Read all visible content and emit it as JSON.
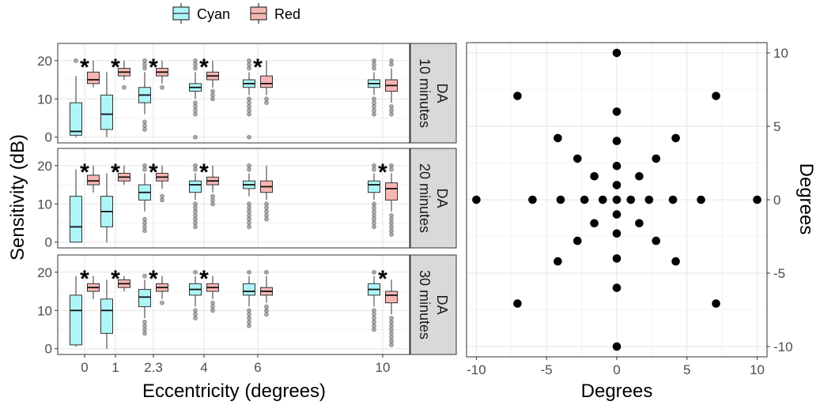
{
  "chart_data": [
    {
      "type": "box",
      "legend": {
        "placement": "top",
        "entries": [
          {
            "name": "Cyan",
            "fill": "#aef5f8"
          },
          {
            "name": "Red",
            "fill": "#f7b6b3"
          }
        ]
      },
      "xlabel": "Eccentricity (degrees)",
      "ylabel": "Sensitivity (dB)",
      "x_ticks": [
        0,
        1,
        2.3,
        4,
        6,
        10
      ],
      "x_tick_labels": [
        "0",
        "1",
        "2.3",
        "4",
        "6",
        "10"
      ],
      "y_ticks": [
        0,
        10,
        20
      ],
      "y_tick_labels": [
        "0",
        "10",
        "20"
      ],
      "ylim": [
        -1.5,
        24.5
      ],
      "grid": true,
      "significance_marker": "*",
      "panels": [
        {
          "strip_lines": [
            "DA",
            "10 minutes"
          ],
          "significant": [
            true,
            true,
            true,
            true,
            true,
            false
          ],
          "series": [
            {
              "name": "Cyan",
              "boxes": [
                {
                  "x": 0,
                  "q1": 0.5,
                  "median": 1.5,
                  "q3": 9,
                  "whislo": 0,
                  "whishi": 16,
                  "outliers": [
                    20
                  ]
                },
                {
                  "x": 1,
                  "q1": 2,
                  "median": 6,
                  "q3": 11,
                  "whislo": 0,
                  "whishi": 17,
                  "outliers": []
                },
                {
                  "x": 2.3,
                  "q1": 9,
                  "median": 11,
                  "q3": 13,
                  "whislo": 6,
                  "whishi": 17,
                  "outliers": [
                    4,
                    3,
                    2,
                    18,
                    19,
                    20
                  ]
                },
                {
                  "x": 4,
                  "q1": 12,
                  "median": 13,
                  "q3": 14,
                  "whislo": 10,
                  "whishi": 17,
                  "outliers": [
                    9,
                    8,
                    7,
                    6,
                    0,
                    18,
                    19,
                    20
                  ]
                },
                {
                  "x": 6,
                  "q1": 13,
                  "median": 14,
                  "q3": 15,
                  "whislo": 11,
                  "whishi": 17,
                  "outliers": [
                    10,
                    9,
                    8,
                    7,
                    6,
                    0,
                    18,
                    19,
                    20
                  ]
                },
                {
                  "x": 10,
                  "q1": 13,
                  "median": 14,
                  "q3": 15,
                  "whislo": 11,
                  "whishi": 17,
                  "outliers": [
                    10,
                    9,
                    8,
                    7,
                    6,
                    18,
                    19,
                    20
                  ]
                }
              ]
            },
            {
              "name": "Red",
              "boxes": [
                {
                  "x": 0,
                  "q1": 14,
                  "median": 15,
                  "q3": 17,
                  "whislo": 13,
                  "whishi": 20,
                  "outliers": []
                },
                {
                  "x": 1,
                  "q1": 16,
                  "median": 17,
                  "q3": 18,
                  "whislo": 15,
                  "whishi": 20,
                  "outliers": [
                    13
                  ]
                },
                {
                  "x": 2.3,
                  "q1": 16,
                  "median": 17,
                  "q3": 18,
                  "whislo": 14,
                  "whishi": 20,
                  "outliers": [
                    13
                  ]
                },
                {
                  "x": 4,
                  "q1": 15,
                  "median": 16,
                  "q3": 17,
                  "whislo": 13,
                  "whishi": 20,
                  "outliers": [
                    12,
                    11,
                    10
                  ]
                },
                {
                  "x": 6,
                  "q1": 13,
                  "median": 14,
                  "q3": 16,
                  "whislo": 11,
                  "whishi": 20,
                  "outliers": [
                    10,
                    9
                  ]
                },
                {
                  "x": 10,
                  "q1": 12,
                  "median": 13.5,
                  "q3": 15,
                  "whislo": 9,
                  "whishi": 18,
                  "outliers": [
                    8,
                    7,
                    6,
                    19,
                    20
                  ]
                }
              ]
            }
          ]
        },
        {
          "strip_lines": [
            "DA",
            "20 minutes"
          ],
          "significant": [
            true,
            true,
            true,
            true,
            false,
            true
          ],
          "series": [
            {
              "name": "Cyan",
              "boxes": [
                {
                  "x": 0,
                  "q1": 0,
                  "median": 4,
                  "q3": 12,
                  "whislo": 0,
                  "whishi": 19,
                  "outliers": []
                },
                {
                  "x": 1,
                  "q1": 4,
                  "median": 8,
                  "q3": 12,
                  "whislo": 0,
                  "whishi": 18,
                  "outliers": []
                },
                {
                  "x": 2.3,
                  "q1": 11,
                  "median": 13,
                  "q3": 15,
                  "whislo": 8,
                  "whishi": 18,
                  "outliers": [
                    6,
                    5,
                    4,
                    3,
                    19,
                    20
                  ]
                },
                {
                  "x": 4,
                  "q1": 13,
                  "median": 15,
                  "q3": 16,
                  "whislo": 11,
                  "whishi": 18,
                  "outliers": [
                    10,
                    9,
                    8,
                    7,
                    6,
                    5,
                    4,
                    19,
                    20
                  ]
                },
                {
                  "x": 6,
                  "q1": 14,
                  "median": 15,
                  "q3": 16,
                  "whislo": 12,
                  "whishi": 18,
                  "outliers": [
                    10,
                    9,
                    8,
                    7,
                    6,
                    5,
                    4,
                    19,
                    20
                  ]
                },
                {
                  "x": 10,
                  "q1": 13,
                  "median": 15,
                  "q3": 16,
                  "whislo": 11,
                  "whishi": 18,
                  "outliers": [
                    10,
                    9,
                    8,
                    7,
                    6,
                    5,
                    4,
                    19,
                    20
                  ]
                }
              ]
            },
            {
              "name": "Red",
              "boxes": [
                {
                  "x": 0,
                  "q1": 15,
                  "median": 16,
                  "q3": 17.5,
                  "whislo": 13,
                  "whishi": 20,
                  "outliers": []
                },
                {
                  "x": 1,
                  "q1": 16,
                  "median": 17,
                  "q3": 18,
                  "whislo": 15,
                  "whishi": 20,
                  "outliers": []
                },
                {
                  "x": 2.3,
                  "q1": 16,
                  "median": 17,
                  "q3": 18,
                  "whislo": 14,
                  "whishi": 20,
                  "outliers": [
                    12,
                    11
                  ]
                },
                {
                  "x": 4,
                  "q1": 15,
                  "median": 16,
                  "q3": 17,
                  "whislo": 13,
                  "whishi": 20,
                  "outliers": [
                    12,
                    11,
                    10
                  ]
                },
                {
                  "x": 6,
                  "q1": 13,
                  "median": 14.5,
                  "q3": 16,
                  "whislo": 11,
                  "whishi": 20,
                  "outliers": [
                    10,
                    9,
                    8,
                    7,
                    6
                  ]
                },
                {
                  "x": 10,
                  "q1": 11,
                  "median": 14,
                  "q3": 15.5,
                  "whislo": 8,
                  "whishi": 18,
                  "outliers": [
                    7,
                    6,
                    5,
                    4,
                    3,
                    2,
                    19,
                    20
                  ]
                }
              ]
            }
          ]
        },
        {
          "strip_lines": [
            "DA",
            "30 minutes"
          ],
          "significant": [
            true,
            true,
            true,
            true,
            false,
            true
          ],
          "series": [
            {
              "name": "Cyan",
              "boxes": [
                {
                  "x": 0,
                  "q1": 1,
                  "median": 10,
                  "q3": 14,
                  "whislo": 0.5,
                  "whishi": 19,
                  "outliers": []
                },
                {
                  "x": 1,
                  "q1": 4,
                  "median": 10,
                  "q3": 13,
                  "whislo": 0,
                  "whishi": 18,
                  "outliers": []
                },
                {
                  "x": 2.3,
                  "q1": 11,
                  "median": 13.5,
                  "q3": 15.5,
                  "whislo": 8,
                  "whishi": 18,
                  "outliers": [
                    7,
                    6,
                    5,
                    4,
                    19
                  ]
                },
                {
                  "x": 4,
                  "q1": 14,
                  "median": 15.5,
                  "q3": 17,
                  "whislo": 11,
                  "whishi": 19,
                  "outliers": [
                    10,
                    9,
                    8,
                    20
                  ]
                },
                {
                  "x": 6,
                  "q1": 14,
                  "median": 15,
                  "q3": 17,
                  "whislo": 11,
                  "whishi": 19,
                  "outliers": [
                    10,
                    9,
                    8,
                    7,
                    6,
                    20
                  ]
                },
                {
                  "x": 10,
                  "q1": 14,
                  "median": 15.5,
                  "q3": 17,
                  "whislo": 11,
                  "whishi": 19,
                  "outliers": [
                    10,
                    9,
                    8,
                    7,
                    6,
                    5,
                    20
                  ]
                }
              ]
            },
            {
              "name": "Red",
              "boxes": [
                {
                  "x": 0,
                  "q1": 15,
                  "median": 16,
                  "q3": 17,
                  "whislo": 13,
                  "whishi": 19,
                  "outliers": []
                },
                {
                  "x": 1,
                  "q1": 16,
                  "median": 17,
                  "q3": 18,
                  "whislo": 15,
                  "whishi": 19,
                  "outliers": []
                },
                {
                  "x": 2.3,
                  "q1": 15,
                  "median": 16,
                  "q3": 17,
                  "whislo": 13,
                  "whishi": 19,
                  "outliers": [
                    12
                  ]
                },
                {
                  "x": 4,
                  "q1": 15,
                  "median": 16,
                  "q3": 17,
                  "whislo": 13,
                  "whishi": 19,
                  "outliers": [
                    12,
                    11,
                    10
                  ]
                },
                {
                  "x": 6,
                  "q1": 14,
                  "median": 15,
                  "q3": 16,
                  "whislo": 12,
                  "whishi": 19,
                  "outliers": [
                    11,
                    10,
                    9,
                    20
                  ]
                },
                {
                  "x": 10,
                  "q1": 12,
                  "median": 14,
                  "q3": 15,
                  "whislo": 9,
                  "whishi": 18,
                  "outliers": [
                    8,
                    7,
                    6,
                    5,
                    4,
                    3,
                    2,
                    1
                  ]
                }
              ]
            }
          ]
        }
      ]
    },
    {
      "type": "scatter",
      "xlabel": "Degrees",
      "ylabel": "Degrees",
      "xlim": [
        -10.7,
        10.7
      ],
      "ylim": [
        -10.7,
        10.7
      ],
      "x_ticks": [
        -10,
        -5,
        0,
        5,
        10
      ],
      "x_tick_labels": [
        "-10",
        "-5",
        "0",
        "5",
        "10"
      ],
      "y_ticks": [
        -10,
        -5,
        0,
        5,
        10
      ],
      "y_tick_labels": [
        "-10",
        "-5",
        "0",
        "5",
        "10"
      ],
      "y_axis_side": "right",
      "grid": true,
      "points": [
        [
          0,
          0
        ],
        [
          1,
          0
        ],
        [
          -1,
          0
        ],
        [
          0,
          1
        ],
        [
          0,
          -1
        ],
        [
          1.6,
          1.6
        ],
        [
          -1.6,
          1.6
        ],
        [
          1.6,
          -1.6
        ],
        [
          -1.6,
          -1.6
        ],
        [
          2.3,
          0
        ],
        [
          -2.3,
          0
        ],
        [
          0,
          2.3
        ],
        [
          0,
          -2.3
        ],
        [
          4,
          0
        ],
        [
          -4,
          0
        ],
        [
          0,
          4
        ],
        [
          0,
          -4
        ],
        [
          2.8,
          2.8
        ],
        [
          -2.8,
          2.8
        ],
        [
          2.8,
          -2.8
        ],
        [
          -2.8,
          -2.8
        ],
        [
          6,
          0
        ],
        [
          -6,
          0
        ],
        [
          0,
          6
        ],
        [
          0,
          -6
        ],
        [
          4.2,
          4.2
        ],
        [
          -4.2,
          4.2
        ],
        [
          4.2,
          -4.2
        ],
        [
          -4.2,
          -4.2
        ],
        [
          10,
          0
        ],
        [
          -10,
          0
        ],
        [
          0,
          10
        ],
        [
          0,
          -10
        ],
        [
          7.07,
          7.07
        ],
        [
          -7.07,
          7.07
        ],
        [
          7.07,
          -7.07
        ],
        [
          -7.07,
          -7.07
        ]
      ]
    }
  ]
}
